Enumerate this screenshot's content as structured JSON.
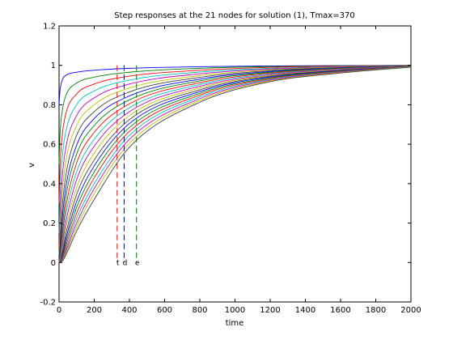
{
  "chart_data": {
    "type": "line",
    "title": "Step responses at the 21 nodes for solution (1), Tmax=370",
    "xlabel": "time",
    "ylabel": "v",
    "xlim": [
      0,
      2000
    ],
    "ylim": [
      -0.2,
      1.2
    ],
    "xticks": [
      0,
      200,
      400,
      600,
      800,
      1000,
      1200,
      1400,
      1600,
      1800,
      2000
    ],
    "yticks": [
      -0.2,
      0,
      0.2,
      0.4,
      0.6,
      0.8,
      1,
      1.2
    ],
    "grid": false,
    "legend": "none",
    "series": [
      {
        "color": "#0000ff",
        "x": [
          0,
          5,
          10,
          20,
          40,
          100,
          200,
          400,
          800,
          1200,
          1600,
          2000
        ],
        "y": [
          0.8,
          0.87,
          0.9,
          0.93,
          0.95,
          0.965,
          0.975,
          0.985,
          0.993,
          0.997,
          0.999,
          1.0
        ]
      },
      {
        "color": "#007f00",
        "x": [
          0,
          5,
          10,
          20,
          40,
          100,
          200,
          400,
          800,
          1200,
          1600,
          2000
        ],
        "y": [
          0.5,
          0.64,
          0.71,
          0.78,
          0.85,
          0.91,
          0.94,
          0.965,
          0.985,
          0.994,
          0.998,
          1.0
        ]
      },
      {
        "color": "#ff0000",
        "x": [
          0,
          5,
          10,
          20,
          40,
          100,
          200,
          400,
          800,
          1200,
          1600,
          2000
        ],
        "y": [
          0.3,
          0.46,
          0.56,
          0.66,
          0.76,
          0.855,
          0.905,
          0.945,
          0.975,
          0.99,
          0.997,
          1.0
        ]
      },
      {
        "color": "#00bfbf",
        "x": [
          0,
          5,
          10,
          20,
          40,
          100,
          200,
          400,
          800,
          1200,
          1600,
          2000
        ],
        "y": [
          0.15,
          0.32,
          0.43,
          0.55,
          0.67,
          0.8,
          0.87,
          0.925,
          0.966,
          0.985,
          0.995,
          1.0
        ]
      },
      {
        "color": "#bf00bf",
        "x": [
          0,
          5,
          10,
          20,
          40,
          100,
          200,
          400,
          800,
          1200,
          1600,
          2000
        ],
        "y": [
          0.08,
          0.21,
          0.32,
          0.45,
          0.59,
          0.745,
          0.835,
          0.905,
          0.957,
          0.981,
          0.993,
          0.999
        ]
      },
      {
        "color": "#bfbf00",
        "x": [
          0,
          5,
          10,
          20,
          40,
          100,
          200,
          400,
          800,
          1200,
          1600,
          2000
        ],
        "y": [
          0.04,
          0.14,
          0.24,
          0.37,
          0.52,
          0.695,
          0.8,
          0.885,
          0.948,
          0.977,
          0.991,
          0.999
        ]
      },
      {
        "color": "#3f3f3f",
        "x": [
          0,
          5,
          10,
          20,
          40,
          100,
          200,
          400,
          800,
          1200,
          1600,
          2000
        ],
        "y": [
          0.02,
          0.09,
          0.17,
          0.3,
          0.45,
          0.645,
          0.765,
          0.865,
          0.939,
          0.973,
          0.989,
          0.998
        ]
      },
      {
        "color": "#0000ff",
        "x": [
          0,
          5,
          10,
          20,
          40,
          100,
          200,
          400,
          800,
          1200,
          1600,
          2000
        ],
        "y": [
          0.01,
          0.06,
          0.12,
          0.24,
          0.39,
          0.595,
          0.73,
          0.845,
          0.93,
          0.969,
          0.987,
          0.998
        ]
      },
      {
        "color": "#007f00",
        "x": [
          0,
          5,
          10,
          20,
          40,
          100,
          200,
          400,
          800,
          1200,
          1600,
          2000
        ],
        "y": [
          0.005,
          0.04,
          0.09,
          0.19,
          0.34,
          0.55,
          0.695,
          0.825,
          0.921,
          0.965,
          0.985,
          0.997
        ]
      },
      {
        "color": "#ff0000",
        "x": [
          0,
          5,
          10,
          20,
          40,
          100,
          200,
          400,
          800,
          1200,
          1600,
          2000
        ],
        "y": [
          0.003,
          0.025,
          0.065,
          0.15,
          0.29,
          0.505,
          0.66,
          0.805,
          0.912,
          0.961,
          0.983,
          0.997
        ]
      },
      {
        "color": "#00bfbf",
        "x": [
          0,
          5,
          10,
          20,
          40,
          100,
          200,
          400,
          800,
          1200,
          1600,
          2000
        ],
        "y": [
          0.002,
          0.016,
          0.045,
          0.12,
          0.25,
          0.46,
          0.625,
          0.785,
          0.903,
          0.957,
          0.981,
          0.996
        ]
      },
      {
        "color": "#bf00bf",
        "x": [
          0,
          5,
          10,
          20,
          40,
          100,
          200,
          400,
          800,
          1200,
          1600,
          2000
        ],
        "y": [
          0.001,
          0.01,
          0.032,
          0.095,
          0.21,
          0.42,
          0.59,
          0.765,
          0.894,
          0.953,
          0.979,
          0.996
        ]
      },
      {
        "color": "#bfbf00",
        "x": [
          0,
          5,
          10,
          20,
          40,
          100,
          200,
          400,
          800,
          1200,
          1600,
          2000
        ],
        "y": [
          0.0,
          0.007,
          0.022,
          0.075,
          0.18,
          0.38,
          0.555,
          0.745,
          0.885,
          0.949,
          0.977,
          0.995
        ]
      },
      {
        "color": "#3f3f3f",
        "x": [
          0,
          5,
          10,
          20,
          40,
          100,
          200,
          400,
          800,
          1200,
          1600,
          2000
        ],
        "y": [
          0.0,
          0.004,
          0.015,
          0.058,
          0.15,
          0.345,
          0.52,
          0.725,
          0.876,
          0.945,
          0.975,
          0.995
        ]
      },
      {
        "color": "#0000ff",
        "x": [
          0,
          5,
          10,
          20,
          40,
          100,
          200,
          400,
          800,
          1200,
          1600,
          2000
        ],
        "y": [
          0.0,
          0.003,
          0.01,
          0.045,
          0.125,
          0.31,
          0.49,
          0.705,
          0.867,
          0.941,
          0.973,
          0.994
        ]
      },
      {
        "color": "#007f00",
        "x": [
          0,
          5,
          10,
          20,
          40,
          100,
          200,
          400,
          800,
          1200,
          1600,
          2000
        ],
        "y": [
          0.0,
          0.002,
          0.007,
          0.034,
          0.105,
          0.28,
          0.46,
          0.685,
          0.858,
          0.937,
          0.971,
          0.994
        ]
      },
      {
        "color": "#ff0000",
        "x": [
          0,
          5,
          10,
          20,
          40,
          100,
          200,
          400,
          800,
          1200,
          1600,
          2000
        ],
        "y": [
          0.0,
          0.001,
          0.005,
          0.026,
          0.087,
          0.25,
          0.43,
          0.665,
          0.849,
          0.933,
          0.969,
          0.993
        ]
      },
      {
        "color": "#00bfbf",
        "x": [
          0,
          5,
          10,
          20,
          40,
          100,
          200,
          400,
          800,
          1200,
          1600,
          2000
        ],
        "y": [
          0.0,
          0.001,
          0.003,
          0.02,
          0.072,
          0.225,
          0.4,
          0.645,
          0.84,
          0.929,
          0.967,
          0.993
        ]
      },
      {
        "color": "#bf00bf",
        "x": [
          0,
          5,
          10,
          20,
          40,
          100,
          200,
          400,
          800,
          1200,
          1600,
          2000
        ],
        "y": [
          0.0,
          0.0,
          0.002,
          0.015,
          0.06,
          0.2,
          0.375,
          0.625,
          0.831,
          0.925,
          0.965,
          0.992
        ]
      },
      {
        "color": "#bfbf00",
        "x": [
          0,
          5,
          10,
          20,
          40,
          100,
          200,
          400,
          800,
          1200,
          1600,
          2000
        ],
        "y": [
          0.0,
          0.0,
          0.001,
          0.011,
          0.05,
          0.18,
          0.35,
          0.605,
          0.822,
          0.921,
          0.963,
          0.992
        ]
      },
      {
        "color": "#3f3f3f",
        "x": [
          0,
          5,
          10,
          20,
          40,
          100,
          200,
          400,
          800,
          1200,
          1600,
          2000
        ],
        "y": [
          0.0,
          0.0,
          0.001,
          0.008,
          0.04,
          0.16,
          0.32,
          0.585,
          0.813,
          0.917,
          0.961,
          0.991
        ]
      }
    ],
    "vlines": [
      {
        "label": "t",
        "x": 330,
        "color": "#ff0000",
        "ymin": 0,
        "ymax": 1
      },
      {
        "label": "d",
        "x": 370,
        "color": "#0000ff",
        "ymin": 0,
        "ymax": 1
      },
      {
        "label": "e",
        "x": 440,
        "color": "#007f00",
        "ymin": 0,
        "ymax": 1
      }
    ]
  }
}
